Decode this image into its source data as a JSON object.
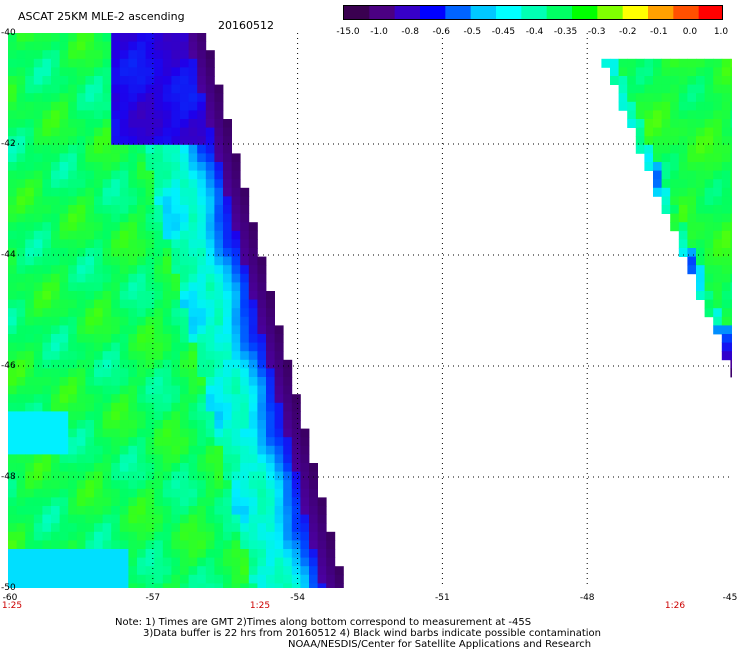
{
  "header": {
    "title": "ASCAT 25KM MLE-2 ascending",
    "date": "20160512"
  },
  "colorbar": {
    "labels": [
      "-15.0",
      "-1.0",
      "-0.8",
      "-0.6",
      "-0.5",
      "-0.45",
      "-0.4",
      "-0.35",
      "-0.3",
      "-0.2",
      "-0.1",
      "0.0",
      "1.0"
    ],
    "colors": [
      "#3a0050",
      "#4b0082",
      "#3700c8",
      "#0000ff",
      "#0064ff",
      "#00c8ff",
      "#00ffff",
      "#00ffb4",
      "#00ff64",
      "#00ff00",
      "#80ff00",
      "#ffff00",
      "#ffa000",
      "#ff5000",
      "#ff0000"
    ]
  },
  "axes": {
    "lat_labels": [
      "-40",
      "-42",
      "-44",
      "-46",
      "-48",
      "-50"
    ],
    "lon_labels": [
      "-60",
      "-57",
      "-54",
      "-51",
      "-48",
      "-45"
    ],
    "lat_range": [
      -50,
      -40
    ],
    "lon_range": [
      -60,
      -45
    ]
  },
  "times": [
    "1:25",
    "1:25",
    "1:26"
  ],
  "notes": [
    "Note: 1) Times are GMT 2)Times along bottom correspond to measurement at -45S",
    "3)Data buffer is 22 hrs from 20160512 4) Black wind barbs indicate possible contamination",
    "NOAA/NESDIS/Center for Satellite Applications and Research"
  ]
}
